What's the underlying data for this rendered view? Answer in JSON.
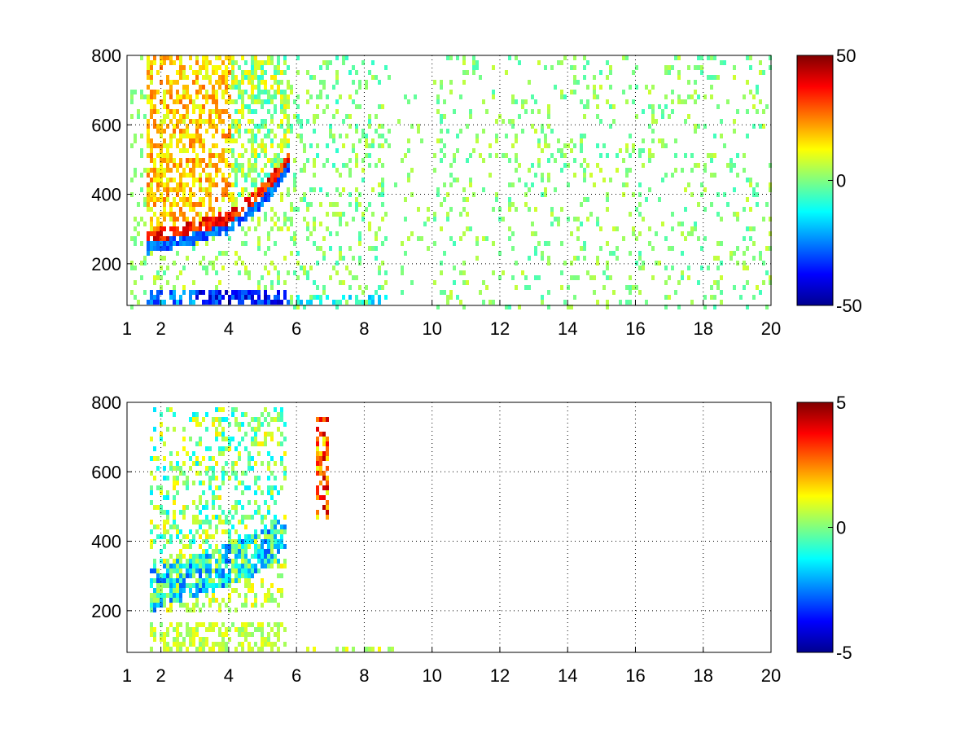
{
  "chart_data": [
    {
      "type": "heatmap",
      "title": "",
      "xlabel": "",
      "ylabel": "",
      "xlim": [
        1,
        20
      ],
      "ylim": [
        80,
        800
      ],
      "x_tick_labels": [
        "1",
        "2",
        "4",
        "6",
        "8",
        "10",
        "12",
        "14",
        "16",
        "18",
        "20"
      ],
      "x_ticks": [
        1,
        2,
        4,
        6,
        8,
        10,
        12,
        14,
        16,
        18,
        20
      ],
      "y_tick_labels": [
        "200",
        "400",
        "600",
        "800"
      ],
      "y_ticks": [
        200,
        400,
        600,
        800
      ],
      "grid": true,
      "colormap": "jet",
      "colorbar": {
        "min": -50,
        "max": 50,
        "tick_labels": [
          "-50",
          "0",
          "50"
        ],
        "ticks": [
          -50,
          0,
          50
        ]
      },
      "features": [
        {
          "description": "dense ridge",
          "x_range": [
            1.5,
            5.8
          ],
          "y_curve": [
            [
              1.5,
              260
            ],
            [
              2,
              270
            ],
            [
              3,
              290
            ],
            [
              4,
              320
            ],
            [
              4.5,
              360
            ],
            [
              5,
              400
            ],
            [
              5.5,
              460
            ],
            [
              5.8,
              500
            ]
          ],
          "value_above": 30,
          "value_below": -40
        },
        {
          "description": "low band",
          "x_range": [
            1.5,
            8.5
          ],
          "y_range": [
            85,
            120
          ],
          "mean_value": -30
        },
        {
          "description": "sparse noise",
          "x_range": [
            6,
            20
          ],
          "values_range": [
            -5,
            10
          ]
        }
      ]
    },
    {
      "type": "heatmap",
      "title": "",
      "xlabel": "",
      "ylabel": "",
      "xlim": [
        1,
        20
      ],
      "ylim": [
        80,
        800
      ],
      "x_tick_labels": [
        "1",
        "2",
        "4",
        "6",
        "8",
        "10",
        "12",
        "14",
        "16",
        "18",
        "20"
      ],
      "x_ticks": [
        1,
        2,
        4,
        6,
        8,
        10,
        12,
        14,
        16,
        18,
        20
      ],
      "y_tick_labels": [
        "200",
        "400",
        "600",
        "800"
      ],
      "y_ticks": [
        200,
        400,
        600,
        800
      ],
      "grid": true,
      "colormap": "jet",
      "colorbar": {
        "min": -5,
        "max": 5,
        "tick_labels": [
          "-5",
          "0",
          "5"
        ],
        "ticks": [
          -5,
          0,
          5
        ]
      },
      "features": [
        {
          "description": "ridge",
          "x_range": [
            1.6,
            5.7
          ],
          "y_curve": [
            [
              1.6,
              260
            ],
            [
              2,
              280
            ],
            [
              3,
              310
            ],
            [
              4,
              340
            ],
            [
              5,
              380
            ],
            [
              5.7,
              420
            ]
          ],
          "mean_value": -1.5
        },
        {
          "description": "upper scatter",
          "x_range": [
            2,
            5.5
          ],
          "y_range": [
            420,
            800
          ],
          "mean_value": 0.5
        },
        {
          "description": "low band",
          "x_range": [
            1.5,
            9.5
          ],
          "y_range": [
            85,
            170
          ],
          "mean_value": 0.5
        },
        {
          "description": "cluster",
          "x_range": [
            6.5,
            6.9
          ],
          "y_range": [
            470,
            760
          ],
          "mean_value": 3
        }
      ]
    }
  ]
}
